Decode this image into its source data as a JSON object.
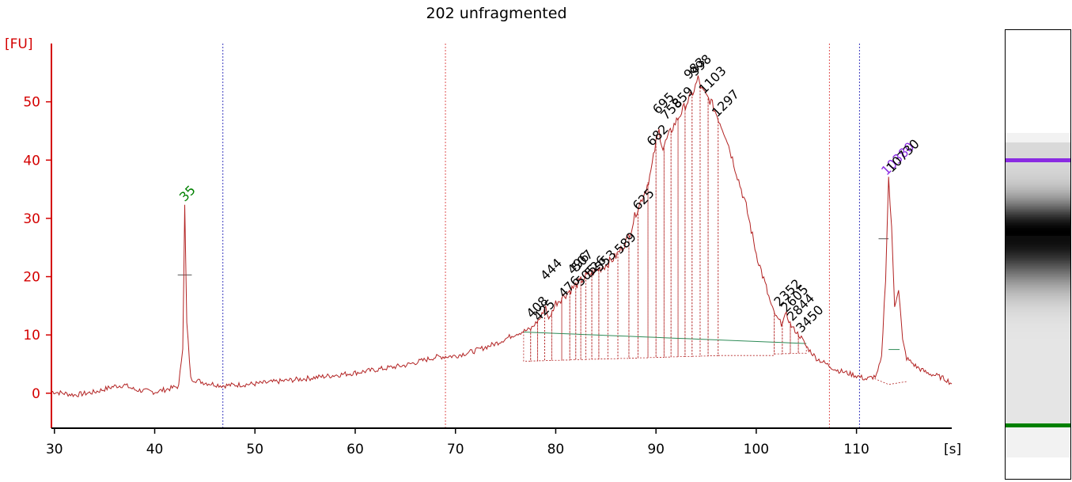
{
  "chart_data": {
    "type": "line",
    "title": "202 unfragmented",
    "ylabel": "[FU]",
    "xunit": "[s]",
    "xlim": [
      29.7,
      119.5
    ],
    "ylim": [
      -6,
      60
    ],
    "xticks": [
      30,
      40,
      50,
      60,
      70,
      80,
      90,
      100,
      110
    ],
    "yticks": [
      0,
      10,
      20,
      30,
      40,
      50
    ],
    "colors": {
      "trace": "#b22222",
      "axis_y": "#d40000",
      "marker_lower": "#008000",
      "marker_upper": "#8a2be2",
      "blue_line": "#3b3bbf",
      "red_line": "#e05050",
      "baseline": "#2e8b57"
    },
    "vertical_lines": [
      {
        "x": 46.8,
        "kind": "blue"
      },
      {
        "x": 69.0,
        "kind": "red"
      },
      {
        "x": 107.3,
        "kind": "red"
      },
      {
        "x": 110.3,
        "kind": "blue"
      }
    ],
    "trace": [
      [
        29.7,
        0.3
      ],
      [
        32,
        -0.3
      ],
      [
        34,
        0.2
      ],
      [
        36,
        1.2
      ],
      [
        37,
        1.4
      ],
      [
        38,
        0.6
      ],
      [
        40,
        0.2
      ],
      [
        41.5,
        0.8
      ],
      [
        42.4,
        1.2
      ],
      [
        42.8,
        8
      ],
      [
        43,
        32
      ],
      [
        43.2,
        12
      ],
      [
        43.6,
        2.5
      ],
      [
        45,
        1.8
      ],
      [
        46.8,
        1.3
      ],
      [
        50,
        1.6
      ],
      [
        55,
        2.5
      ],
      [
        60,
        3.5
      ],
      [
        65,
        4.8
      ],
      [
        68,
        6.2
      ],
      [
        70,
        6.4
      ],
      [
        72,
        7.3
      ],
      [
        74,
        8.5
      ],
      [
        76,
        10.2
      ],
      [
        77.5,
        11
      ],
      [
        78.5,
        13
      ],
      [
        79,
        15
      ],
      [
        79.3,
        12.5
      ],
      [
        80,
        15.5
      ],
      [
        81,
        17
      ],
      [
        82,
        18.5
      ],
      [
        83,
        20
      ],
      [
        84,
        21
      ],
      [
        85,
        22
      ],
      [
        86,
        23.5
      ],
      [
        87,
        26
      ],
      [
        87.5,
        28
      ],
      [
        88,
        31
      ],
      [
        88.5,
        33
      ],
      [
        89,
        35
      ],
      [
        89.5,
        38
      ],
      [
        90,
        43
      ],
      [
        90.3,
        45
      ],
      [
        90.7,
        42
      ],
      [
        91.2,
        44
      ],
      [
        91.8,
        46
      ],
      [
        92.3,
        47.5
      ],
      [
        92.8,
        49
      ],
      [
        93.3,
        50.5
      ],
      [
        93.8,
        52
      ],
      [
        94.2,
        54
      ],
      [
        94.6,
        52
      ],
      [
        95,
        51
      ],
      [
        95.5,
        50
      ],
      [
        96,
        48
      ],
      [
        96.5,
        46
      ],
      [
        97,
        44
      ],
      [
        97.5,
        41
      ],
      [
        98,
        38
      ],
      [
        98.5,
        35
      ],
      [
        99,
        32
      ],
      [
        99.5,
        28
      ],
      [
        100,
        24
      ],
      [
        100.5,
        21
      ],
      [
        101,
        18
      ],
      [
        101.5,
        15
      ],
      [
        102,
        13
      ],
      [
        102.5,
        12
      ],
      [
        103,
        13.5
      ],
      [
        103.5,
        11.5
      ],
      [
        104,
        10.5
      ],
      [
        104.5,
        9.5
      ],
      [
        105,
        8
      ],
      [
        105.5,
        7
      ],
      [
        106,
        6
      ],
      [
        107,
        5
      ],
      [
        108,
        4
      ],
      [
        109,
        3.5
      ],
      [
        110,
        3
      ],
      [
        111,
        2.4
      ],
      [
        112,
        3
      ],
      [
        112.5,
        6
      ],
      [
        112.9,
        20
      ],
      [
        113.2,
        37
      ],
      [
        113.5,
        28
      ],
      [
        113.8,
        15
      ],
      [
        114.2,
        18
      ],
      [
        114.6,
        9
      ],
      [
        115,
        6
      ],
      [
        116,
        4.5
      ],
      [
        117,
        3.5
      ],
      [
        118,
        3
      ],
      [
        119,
        2.3
      ],
      [
        119.5,
        1.6
      ]
    ],
    "peak_labels": [
      {
        "text": "35",
        "x": 43.0,
        "y": 32.5,
        "kind": "marker_lower"
      },
      {
        "text": "408",
        "x": 77.6,
        "y": 12.5,
        "kind": "fragment"
      },
      {
        "text": "425",
        "x": 78.3,
        "y": 12.0,
        "kind": "fragment"
      },
      {
        "text": "444",
        "x": 79.0,
        "y": 19.0,
        "kind": "fragment"
      },
      {
        "text": "476",
        "x": 80.8,
        "y": 16.0,
        "kind": "fragment"
      },
      {
        "text": "496",
        "x": 81.7,
        "y": 20.0,
        "kind": "fragment"
      },
      {
        "text": "507",
        "x": 82.1,
        "y": 20.5,
        "kind": "fragment"
      },
      {
        "text": "505",
        "x": 82.5,
        "y": 18.0,
        "kind": "fragment"
      },
      {
        "text": "526",
        "x": 83.4,
        "y": 19.5,
        "kind": "fragment"
      },
      {
        "text": "553",
        "x": 84.4,
        "y": 20.5,
        "kind": "fragment"
      },
      {
        "text": "589",
        "x": 86.4,
        "y": 23.5,
        "kind": "fragment"
      },
      {
        "text": "625",
        "x": 88.2,
        "y": 31.0,
        "kind": "fragment"
      },
      {
        "text": "682",
        "x": 89.6,
        "y": 42.0,
        "kind": "fragment"
      },
      {
        "text": "695",
        "x": 90.2,
        "y": 47.5,
        "kind": "fragment"
      },
      {
        "text": "758",
        "x": 91.0,
        "y": 46.5,
        "kind": "fragment"
      },
      {
        "text": "859",
        "x": 92.1,
        "y": 48.5,
        "kind": "fragment"
      },
      {
        "text": "983",
        "x": 93.3,
        "y": 53.5,
        "kind": "fragment"
      },
      {
        "text": "998",
        "x": 93.9,
        "y": 54.0,
        "kind": "fragment"
      },
      {
        "text": "1103",
        "x": 94.8,
        "y": 51.0,
        "kind": "fragment"
      },
      {
        "text": "1297",
        "x": 96.1,
        "y": 47.0,
        "kind": "fragment"
      },
      {
        "text": "2352",
        "x": 102.3,
        "y": 14.5,
        "kind": "fragment"
      },
      {
        "text": "2605",
        "x": 103.0,
        "y": 13.5,
        "kind": "fragment"
      },
      {
        "text": "2844",
        "x": 103.6,
        "y": 12.0,
        "kind": "fragment"
      },
      {
        "text": "3450",
        "x": 104.5,
        "y": 10.0,
        "kind": "fragment"
      },
      {
        "text": "10380",
        "x": 113.0,
        "y": 37.0,
        "kind": "marker_upper"
      },
      {
        "text": "10730",
        "x": 113.5,
        "y": 37.5,
        "kind": "fragment"
      }
    ],
    "peak_ranges": [
      [
        76.8,
        77.5
      ],
      [
        77.5,
        78.2
      ],
      [
        78.2,
        78.9
      ],
      [
        78.9,
        79.6
      ],
      [
        79.6,
        80.6
      ],
      [
        80.6,
        81.4
      ],
      [
        81.4,
        82.0
      ],
      [
        82.0,
        82.5
      ],
      [
        82.5,
        83.0
      ],
      [
        83.0,
        83.6
      ],
      [
        83.6,
        84.3
      ],
      [
        84.3,
        85.2
      ],
      [
        85.2,
        86.2
      ],
      [
        86.2,
        87.3
      ],
      [
        87.3,
        88.2
      ],
      [
        88.2,
        89.2
      ],
      [
        89.2,
        90.0
      ],
      [
        90.0,
        90.8
      ],
      [
        90.8,
        91.5
      ],
      [
        91.5,
        92.2
      ],
      [
        92.2,
        92.9
      ],
      [
        92.9,
        93.6
      ],
      [
        93.6,
        94.4
      ],
      [
        94.4,
        95.2
      ],
      [
        95.2,
        96.2
      ],
      [
        96.2,
        101.8
      ],
      [
        101.8,
        102.6
      ],
      [
        102.6,
        103.4
      ],
      [
        103.4,
        104.2
      ],
      [
        104.2,
        105.0
      ]
    ],
    "gel_bands": {
      "marker_upper": "#8a2be2",
      "marker_lower": "#008000"
    }
  }
}
